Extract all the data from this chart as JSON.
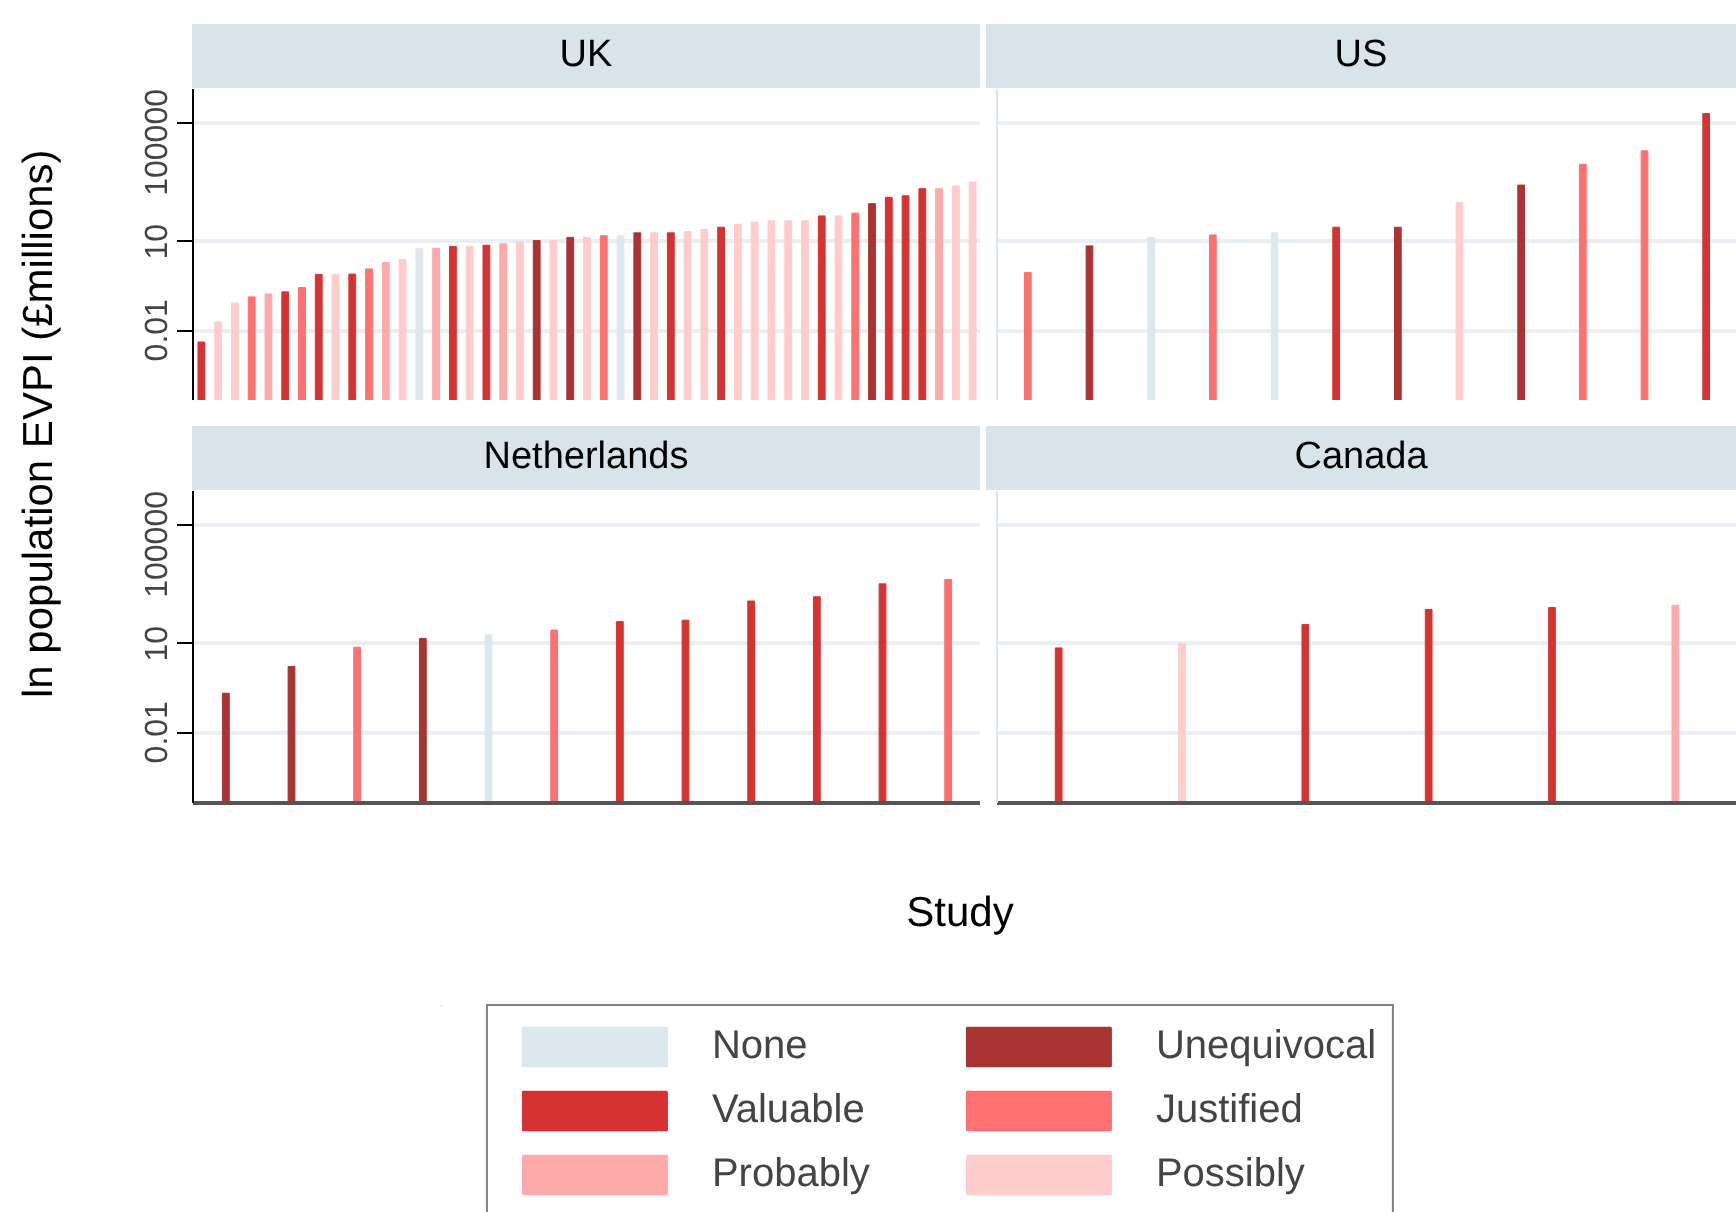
{
  "chart_data": [
    {
      "type": "bar",
      "title": "UK",
      "ylabel": "ln population EVPI (£millions)",
      "xlabel": "Study",
      "log": "y",
      "grid": "y",
      "tick_labels": "y",
      "ylim": [
        4e-05,
        1500000
      ],
      "yticks": [
        0.01,
        10,
        100000
      ],
      "categories": [
        null,
        null,
        null,
        null,
        null,
        null,
        null,
        null,
        null,
        null,
        null,
        null,
        null,
        null,
        null,
        null,
        null,
        null,
        null,
        null,
        null,
        null,
        null,
        null,
        null,
        null,
        null,
        null,
        null,
        null,
        null,
        null,
        null,
        null,
        null,
        null,
        null,
        null,
        null,
        null,
        null,
        null,
        null,
        null,
        null,
        null,
        null
      ],
      "values": [
        0.004,
        0.019,
        0.083,
        0.135,
        0.17,
        0.2,
        0.28,
        0.78,
        0.8,
        0.8,
        1.2,
        2,
        2.5,
        5.8,
        6,
        6.9,
        6.9,
        7.6,
        8.5,
        10,
        11,
        11,
        14,
        14,
        16,
        16,
        20,
        20,
        20,
        22,
        26,
        31,
        39,
        46,
        51,
        51,
        51,
        75,
        75,
        93,
        195,
        320,
        360,
        630,
        630,
        780,
        1050
      ],
      "colors": [
        "#d73232",
        "#ffcccc",
        "#ffcccc",
        "#ff7070",
        "#ffaaaa",
        "#d73232",
        "#ff7070",
        "#d73232",
        "#ffcccc",
        "#d73232",
        "#ff7070",
        "#ffaaaa",
        "#ffcccc",
        "#dde8ee",
        "#ffaaaa",
        "#d73232",
        "#ffcccc",
        "#d73232",
        "#ffaaaa",
        "#ffcccc",
        "#aa3333",
        "#ffcccc",
        "#aa3333",
        "#ffcccc",
        "#ff7070",
        "#dde8ee",
        "#aa3333",
        "#ffcccc",
        "#d73232",
        "#ffcccc",
        "#ffcccc",
        "#d73232",
        "#ffcccc",
        "#ffcccc",
        "#ffcccc",
        "#ffcccc",
        "#ffcccc",
        "#d73232",
        "#ffcccc",
        "#ff7070",
        "#aa3333",
        "#d73232",
        "#d73232",
        "#d73232",
        "#ffaaaa",
        "#ffcccc",
        "#ffcccc"
      ]
    },
    {
      "type": "bar",
      "title": "US",
      "log": "y",
      "grid": "y",
      "tick_labels": false,
      "ylim": [
        4e-05,
        1500000
      ],
      "yticks": [
        0.01,
        10,
        100000
      ],
      "categories": [
        null,
        null,
        null,
        null,
        null,
        null,
        null,
        null,
        null,
        null,
        null,
        null
      ],
      "values": [
        0.9,
        7.2,
        14,
        17,
        20,
        31,
        31,
        215,
        830,
        4200,
        12000,
        220000
      ],
      "colors": [
        "#ff7070",
        "#aa3333",
        "#dde8ee",
        "#ff7070",
        "#dde8ee",
        "#d73232",
        "#aa3333",
        "#ffcccc",
        "#aa3333",
        "#ff7070",
        "#ff7070",
        "#d73232"
      ]
    },
    {
      "type": "bar",
      "title": "Netherlands",
      "log": "y",
      "grid": "y",
      "tick_labels": "y",
      "ylim": [
        4e-05,
        1500000
      ],
      "yticks": [
        0.01,
        10,
        100000
      ],
      "categories": [
        null,
        null,
        null,
        null,
        null,
        null,
        null,
        null,
        null,
        null,
        null,
        null
      ],
      "values": [
        0.21,
        1.7,
        7.6,
        15,
        20,
        29,
        56,
        63,
        280,
        390,
        1070,
        1500
      ],
      "colors": [
        "#aa3333",
        "#aa3333",
        "#ff7070",
        "#aa3333",
        "#dde8ee",
        "#ff7070",
        "#d73232",
        "#d73232",
        "#d73232",
        "#d73232",
        "#d73232",
        "#ff7070"
      ]
    },
    {
      "type": "bar",
      "title": "Canada",
      "log": "y",
      "grid": "y",
      "tick_labels": false,
      "ylim": [
        4e-05,
        1500000
      ],
      "yticks": [
        0.01,
        10,
        100000
      ],
      "categories": [
        null,
        null,
        null,
        null,
        null,
        null
      ],
      "values": [
        7.2,
        10,
        45,
        145,
        170,
        200
      ],
      "colors": [
        "#d73232",
        "#ffcccc",
        "#d73232",
        "#d73232",
        "#d73232",
        "#ffaaaa"
      ]
    },
    {
      "type": "other",
      "categories": [
        "None",
        "Unequivocal",
        "Valuable",
        "Justified",
        "Probably",
        "Possibly"
      ],
      "colors": [
        "#dde8ee",
        "#aa3333",
        "#d73232",
        "#ff7070",
        "#ffaaaa",
        "#ffcccc"
      ]
    }
  ]
}
